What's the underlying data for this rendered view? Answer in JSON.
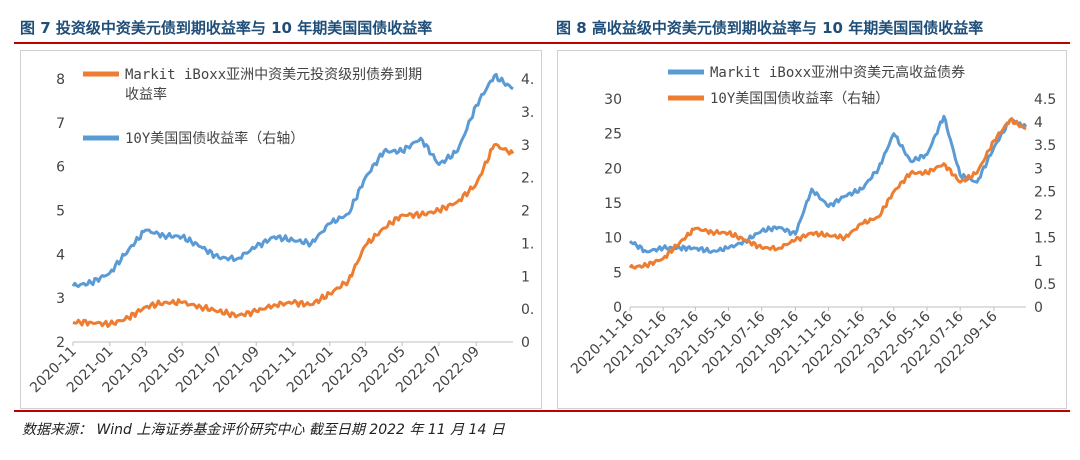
{
  "header": {
    "left_title": "图 7  投资级中资美元债到期收益率与 10 年期美国国债收益率",
    "right_title": "图 8  高收益级中资美元债到期收益率与 10 年期美国国债收益率"
  },
  "source": "数据来源： Wind 上海证券基金评价研究中心  截至日期 2022 年 11 月 14 日",
  "colors": {
    "orange": "#ed7d31",
    "blue": "#5b9bd5"
  },
  "chart_data": [
    {
      "type": "line",
      "x_tick_labels": [
        "2020-11",
        "2021-01",
        "2021-03",
        "2021-05",
        "2021-07",
        "2021-09",
        "2021-11",
        "2022-01",
        "2022-03",
        "2022-05",
        "2022-07",
        "2022-09"
      ],
      "x": [
        "2020-11",
        "2020-12",
        "2021-01",
        "2021-02",
        "2021-03",
        "2021-04",
        "2021-05",
        "2021-06",
        "2021-07",
        "2021-08",
        "2021-09",
        "2021-10",
        "2021-11",
        "2021-12",
        "2022-01",
        "2022-02",
        "2022-03",
        "2022-04",
        "2022-05",
        "2022-06",
        "2022-07",
        "2022-08",
        "2022-09",
        "2022-10",
        "2022-11"
      ],
      "xlim": [
        "2020-11",
        "2022-11"
      ],
      "y_left": {
        "min": 2,
        "max": 8,
        "ticks": [
          "2",
          "3",
          "4",
          "5",
          "6",
          "7",
          "8"
        ]
      },
      "y_right": {
        "min": 0,
        "max": 4,
        "ticks": [
          "0",
          "0.",
          "1",
          "1.",
          "2",
          "2.",
          "3",
          "3.",
          "4."
        ]
      },
      "series": [
        {
          "name": "Markit iBoxx亚洲中资美元投资级别债券到期收益率",
          "name_lines": [
            "Markit iBoxx亚洲中资美元投资级别债券到期",
            "收益率"
          ],
          "axis": "left",
          "color": "#ed7d31",
          "values": [
            2.45,
            2.45,
            2.4,
            2.55,
            2.8,
            2.9,
            2.9,
            2.8,
            2.7,
            2.6,
            2.7,
            2.85,
            2.9,
            2.85,
            3.1,
            3.4,
            4.2,
            4.6,
            4.9,
            4.9,
            5.0,
            5.2,
            5.6,
            6.5,
            6.3
          ]
        },
        {
          "name": "10Y美国国债收益率（右轴）",
          "name_lines": [
            "10Y美国国债收益率（右轴）"
          ],
          "axis": "right",
          "color": "#5b9bd5",
          "values": [
            0.85,
            0.9,
            1.05,
            1.4,
            1.7,
            1.62,
            1.6,
            1.45,
            1.28,
            1.27,
            1.45,
            1.6,
            1.55,
            1.5,
            1.8,
            1.95,
            2.5,
            2.9,
            2.9,
            3.1,
            2.7,
            2.9,
            3.6,
            4.05,
            3.85
          ]
        }
      ]
    },
    {
      "type": "line",
      "x_tick_labels": [
        "2020-11-16",
        "2021-01-16",
        "2021-03-16",
        "2021-05-16",
        "2021-07-16",
        "2021-09-16",
        "2021-11-16",
        "2022-01-16",
        "2022-03-16",
        "2022-05-16",
        "2022-07-16",
        "2022-09-16"
      ],
      "x": [
        "2020-11-16",
        "2020-12-16",
        "2021-01-16",
        "2021-02-16",
        "2021-03-16",
        "2021-04-16",
        "2021-05-16",
        "2021-06-16",
        "2021-07-16",
        "2021-08-16",
        "2021-09-16",
        "2021-10-16",
        "2021-11-16",
        "2021-12-16",
        "2022-01-16",
        "2022-02-16",
        "2022-03-16",
        "2022-04-16",
        "2022-05-16",
        "2022-06-16",
        "2022-07-16",
        "2022-08-16",
        "2022-09-16",
        "2022-10-16",
        "2022-11-14"
      ],
      "xlim": [
        "2020-11-16",
        "2022-11-14"
      ],
      "y_left": {
        "min": 0,
        "max": 30,
        "ticks": [
          "0",
          "5",
          "10",
          "15",
          "20",
          "25",
          "30"
        ]
      },
      "y_right": {
        "min": 0,
        "max": 4.5,
        "ticks": [
          "0",
          "0.5",
          "1",
          "1.5",
          "2",
          "2.5",
          "3",
          "3.5",
          "4",
          "4.5"
        ]
      },
      "series": [
        {
          "name": "Markit iBoxx亚洲中资美元高收益债券",
          "name_lines": [
            "Markit iBoxx亚洲中资美元高收益债券"
          ],
          "axis": "left",
          "color": "#5b9bd5",
          "values": [
            9.5,
            8.0,
            8.5,
            8.5,
            8.5,
            8.0,
            8.5,
            9.5,
            11.0,
            11.5,
            10.5,
            17.0,
            14.5,
            16.0,
            17.0,
            20.0,
            25.0,
            21.0,
            22.0,
            27.5,
            19.0,
            18.0,
            23.0,
            27.0,
            26.0
          ]
        },
        {
          "name": "10Y美国国债收益率（右轴）",
          "name_lines": [
            "10Y美国国债收益率（右轴）"
          ],
          "axis": "right",
          "color": "#ed7d31",
          "values": [
            0.85,
            0.9,
            1.05,
            1.4,
            1.7,
            1.62,
            1.6,
            1.45,
            1.28,
            1.27,
            1.45,
            1.6,
            1.55,
            1.5,
            1.8,
            1.95,
            2.5,
            2.9,
            2.9,
            3.1,
            2.7,
            2.9,
            3.6,
            4.05,
            3.85
          ]
        }
      ]
    }
  ]
}
